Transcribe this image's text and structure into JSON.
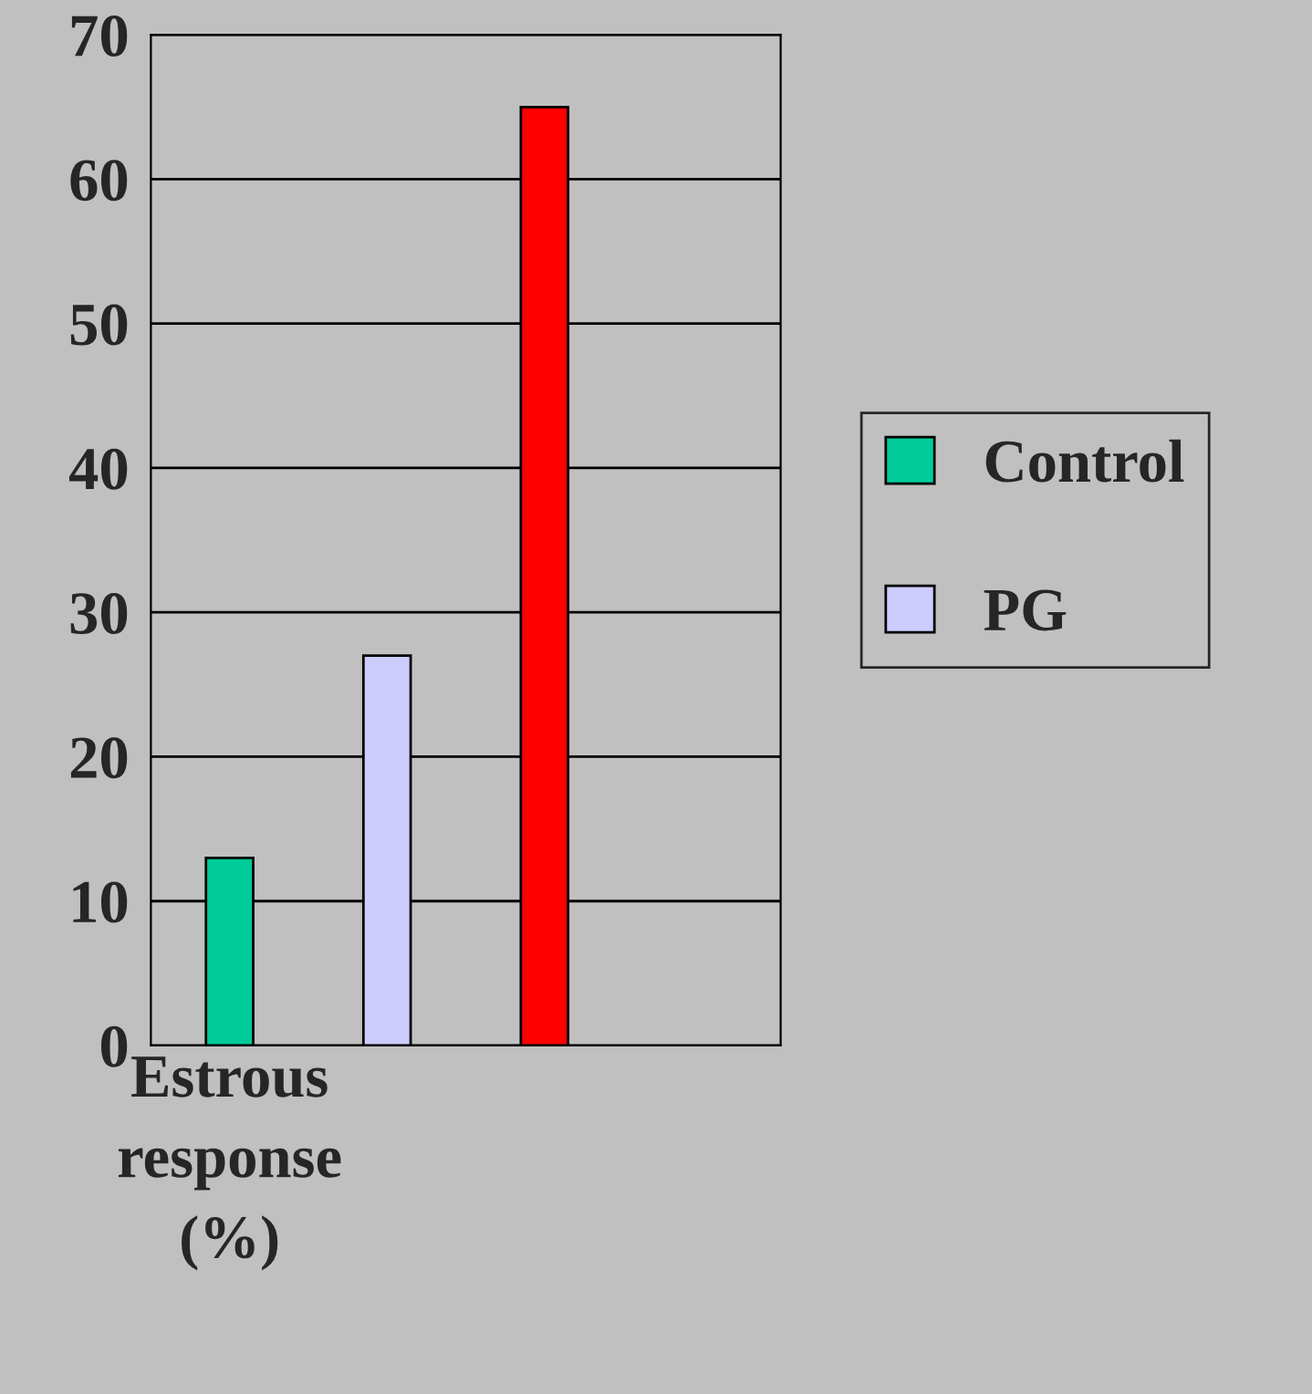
{
  "chart_data": {
    "type": "bar",
    "categories": [
      "Estrous\nresponse\n(%)",
      null,
      null,
      null
    ],
    "series": [
      {
        "name": "Control",
        "color": "#00cc99",
        "values": [
          13,
          null,
          null,
          null
        ]
      },
      {
        "name": "PG",
        "color": "#ccccff",
        "values": [
          null,
          27,
          null,
          null
        ]
      },
      {
        "color": "#ff0000",
        "values": [
          null,
          null,
          65,
          null
        ]
      }
    ],
    "ylim": [
      0,
      70
    ],
    "yticks": [
      0,
      10,
      20,
      30,
      40,
      50,
      60,
      70
    ],
    "grid": "y",
    "legend": "right"
  }
}
